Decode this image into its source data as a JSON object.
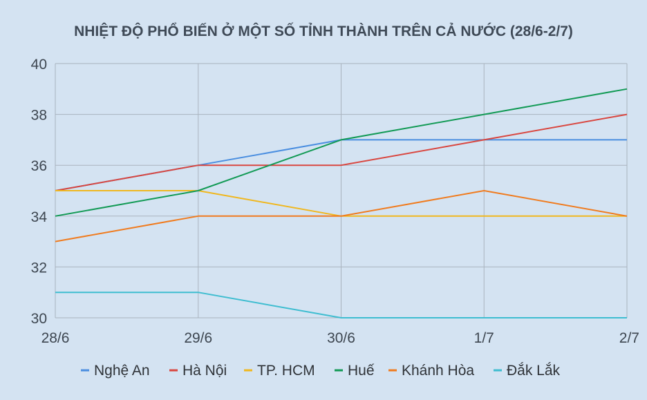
{
  "chart_data": {
    "type": "line",
    "title": "NHIỆT ĐỘ PHỔ BIẾN Ở MỘT SỐ TỈNH THÀNH TRÊN CẢ NƯỚC (28/6-2/7)",
    "xlabel": "",
    "ylabel": "",
    "categories": [
      "28/6",
      "29/6",
      "30/6",
      "1/7",
      "2/7"
    ],
    "ylim": [
      30,
      40
    ],
    "yticks": [
      30,
      32,
      34,
      36,
      38,
      40
    ],
    "grid": true,
    "legend_position": "bottom",
    "series": [
      {
        "name": "Nghệ An",
        "color": "#4a8ee0",
        "values": [
          35,
          36,
          37,
          37,
          37
        ]
      },
      {
        "name": "Hà Nội",
        "color": "#d9463f",
        "values": [
          35,
          36,
          36,
          37,
          38
        ]
      },
      {
        "name": "TP. HCM",
        "color": "#f0b71e",
        "values": [
          35,
          35,
          34,
          34,
          34
        ]
      },
      {
        "name": "Huế",
        "color": "#129a55",
        "values": [
          34,
          35,
          37,
          38,
          39
        ]
      },
      {
        "name": "Khánh Hòa",
        "color": "#f07b1e",
        "values": [
          33,
          34,
          34,
          35,
          34
        ]
      },
      {
        "name": "Đắk Lắk",
        "color": "#3ebdd0",
        "values": [
          31,
          31,
          30,
          30,
          30
        ]
      }
    ]
  },
  "colors": {
    "background": "#d4e3f2",
    "gridline": "#a9b3be"
  }
}
